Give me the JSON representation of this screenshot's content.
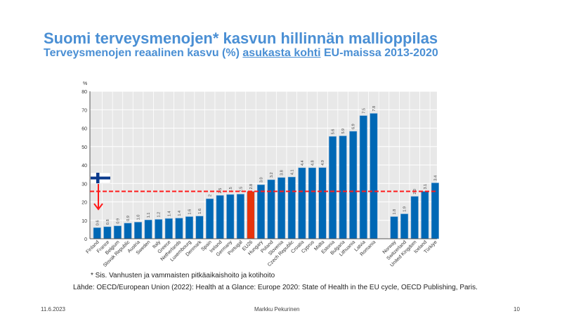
{
  "slide": {
    "title": "Suomi terveysmenojen* kasvun hillinnän mallioppilas",
    "subtitle_pre": "Terveysmenojen reaalinen kasvu (%) ",
    "subtitle_underlined": "asukasta kohti",
    "subtitle_post": " EU-maissa 2013-2020",
    "footnote": "* Sis. Vanhusten ja vammaisten pitkäaikaishoito ja kotihoito",
    "source": "Lähde: OECD/European Union (2022): Health at a Glance: Europe 2020: State of Health in the EU cycle, OECD Publishing, Paris.",
    "date": "11.6.2023",
    "author": "Markku  Pekurinen",
    "page": "10"
  },
  "chart_data": {
    "type": "bar",
    "ylabel": "%",
    "ylim": [
      0,
      80
    ],
    "yticks": [
      0,
      10,
      20,
      30,
      40,
      50,
      60,
      70,
      80
    ],
    "grid": true,
    "reference_line": {
      "label": "EU26",
      "value": 25.7,
      "style": "red dashed"
    },
    "highlight": "EU26",
    "colors": {
      "bar": "#0068b5",
      "highlight": "#e8340c",
      "line": "#ff1a1a",
      "title": "#4a8fd4"
    },
    "categories": [
      "Finland",
      "France",
      "Belgium",
      "Slovak Republic",
      "Austria",
      "Sweden",
      "Italy",
      "Greece",
      "Netherlands",
      "Luxembourg",
      "Denmark",
      "Spain",
      "Ireland",
      "Germany",
      "Portugal",
      "EU26",
      "Hungary",
      "Poland",
      "Slovenia",
      "Czech Republic",
      "Croatia",
      "Cyprus",
      "Malta",
      "Estonia",
      "Bulgaria",
      "Lithuania",
      "Latvia",
      "Romania",
      "",
      "Norway",
      "Switzerland",
      "United Kingdom",
      "Iceland",
      "Türkiye"
    ],
    "values": [
      6,
      6.5,
      7,
      8.5,
      9,
      10.2,
      10.5,
      11,
      11.2,
      12,
      12.3,
      21.7,
      23.5,
      24,
      24.2,
      25.7,
      29.3,
      32,
      33.2,
      33.5,
      38.5,
      38.5,
      38.6,
      55.5,
      55.8,
      58.3,
      66.8,
      68,
      null,
      12,
      13.5,
      23,
      25.7,
      30.3
    ],
    "data_labels": [
      "0.6",
      "0.8",
      "0.9",
      "0.9",
      "1.0",
      "1.1",
      "1.2",
      "1.4",
      "1.4",
      "1.6",
      "1.6",
      "2",
      "2.5",
      "2.5",
      "2.5",
      "2.8",
      "3.0",
      "3.2",
      "3.8",
      "4.1",
      "4.4",
      "4.8",
      "4.9",
      "5.6",
      "5.9",
      "6.9",
      "7.5",
      "7.8",
      "",
      "1.8",
      "1.9",
      "2.0",
      "3.1",
      "3.4"
    ]
  }
}
